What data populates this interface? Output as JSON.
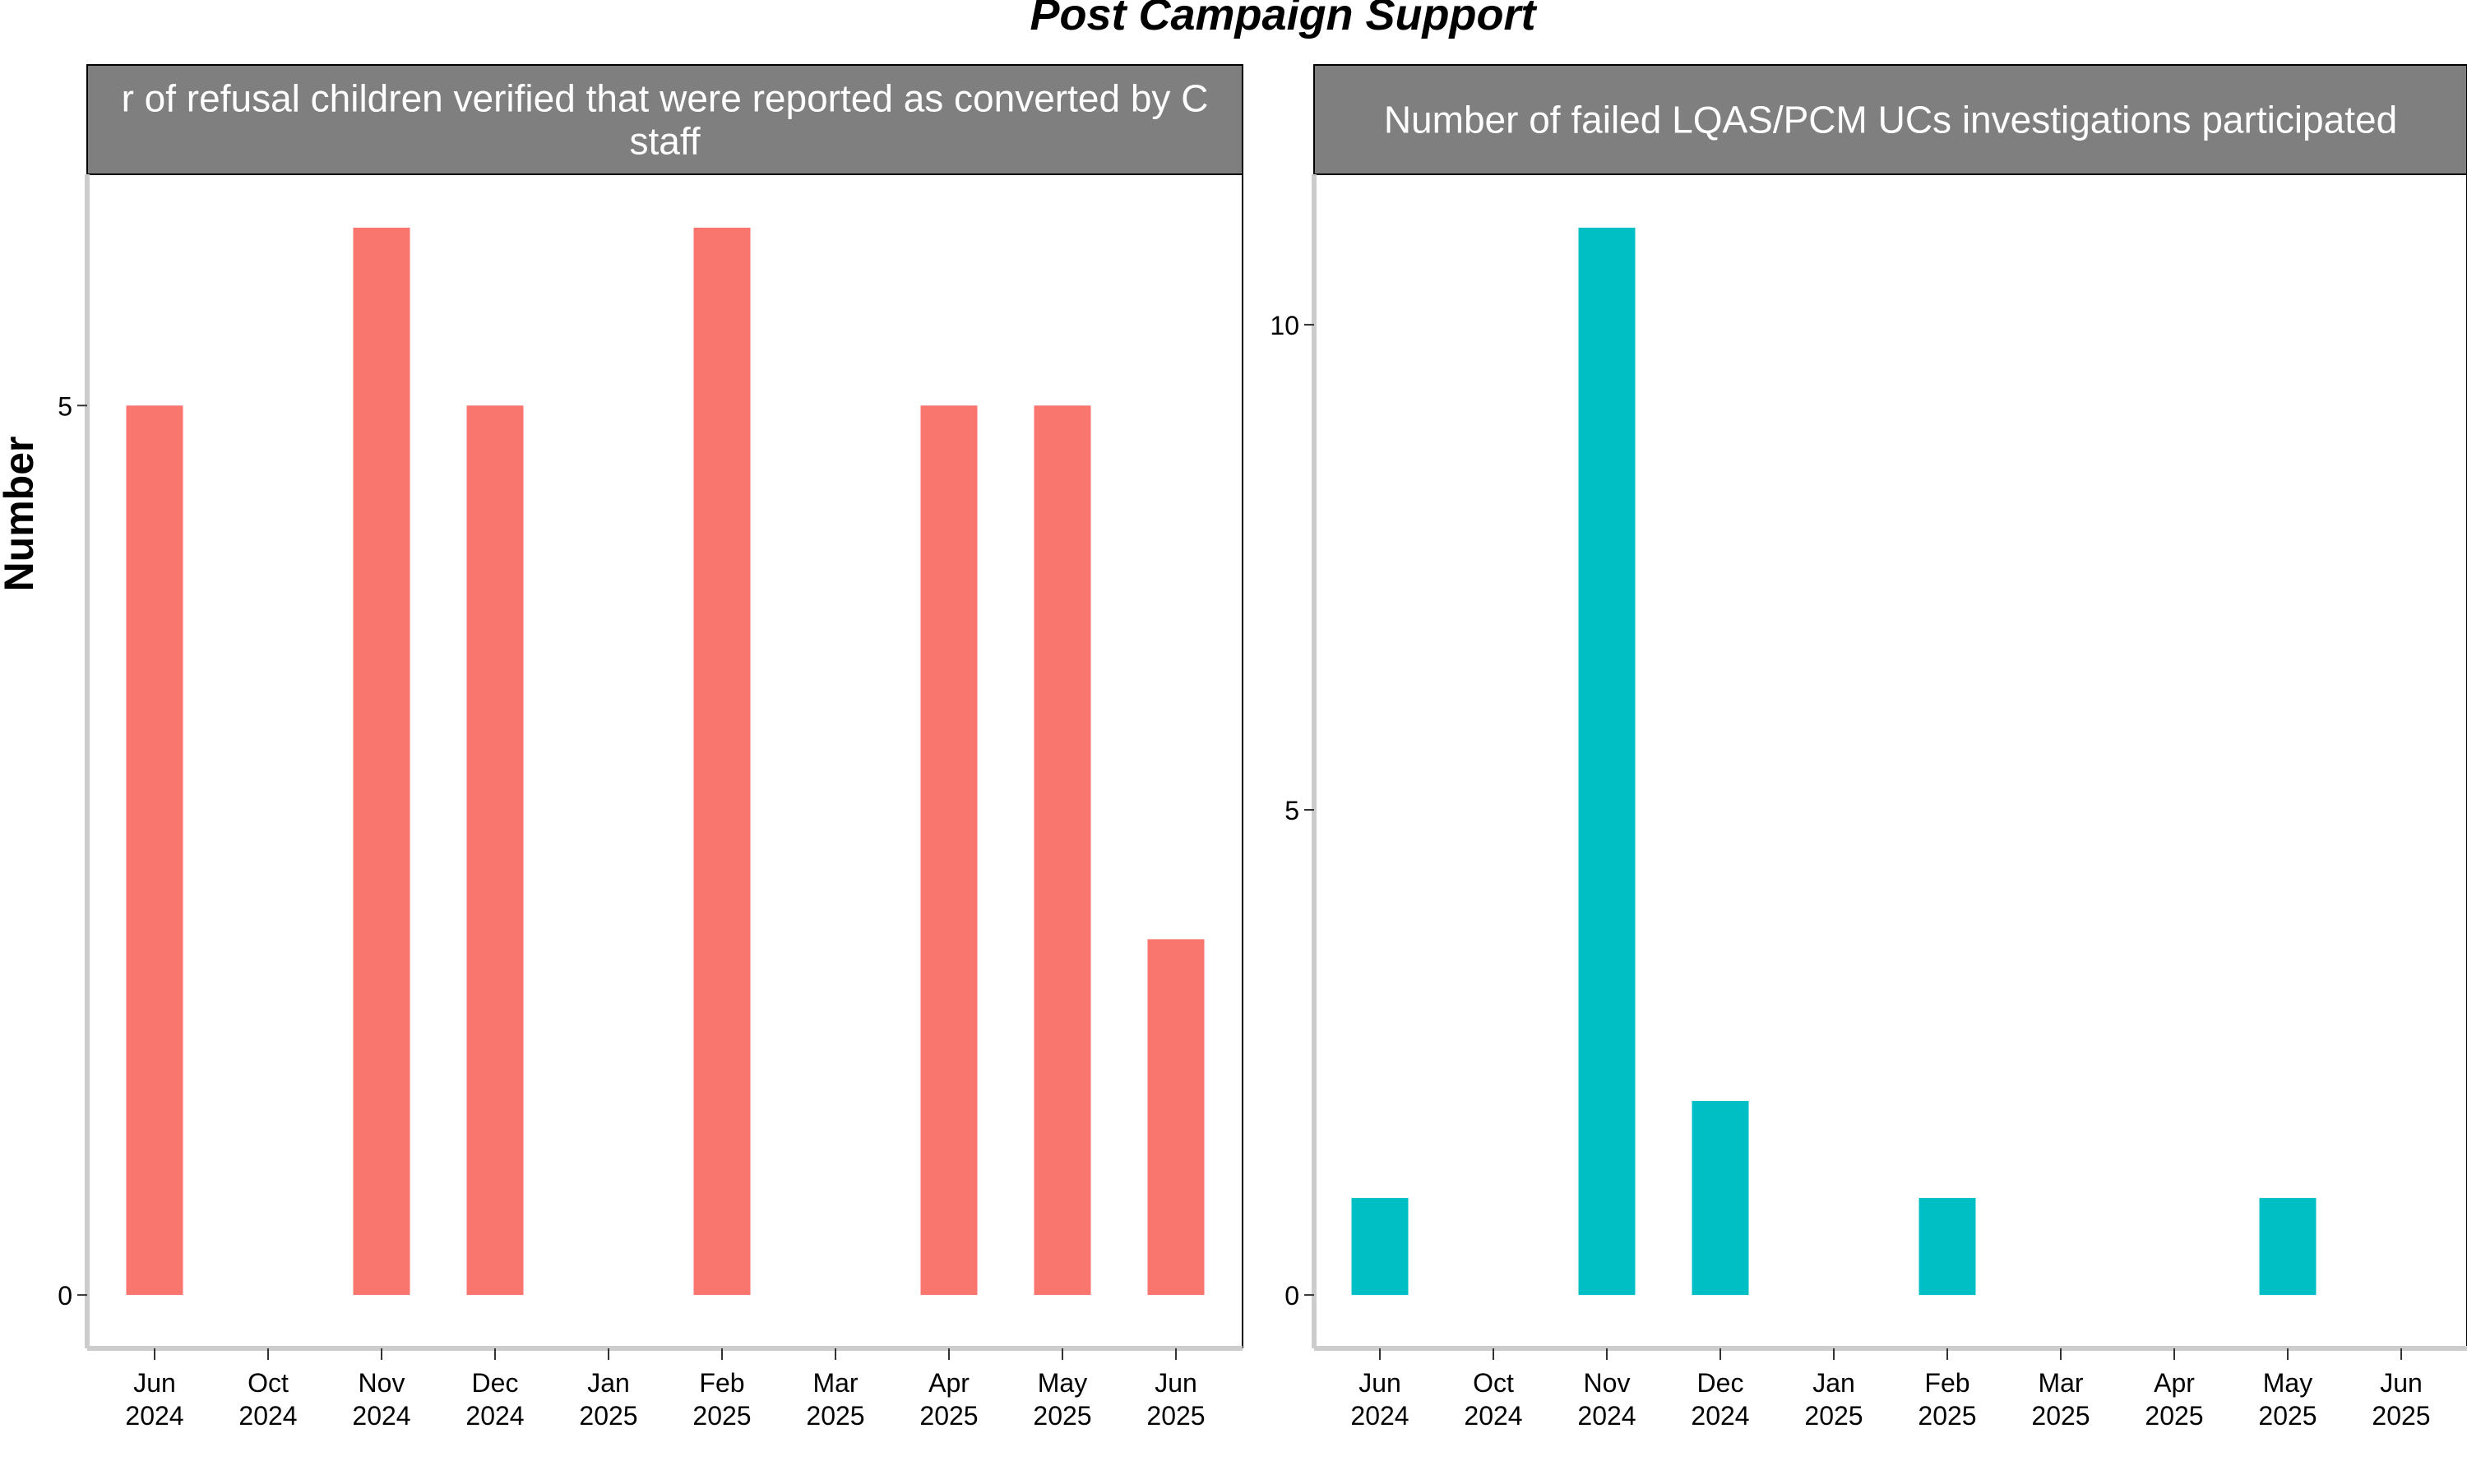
{
  "figure": {
    "title": "Post Campaign Support",
    "ylabel": "Number"
  },
  "chart_data": [
    {
      "type": "bar",
      "panel_title": "Number of refusal children verified that were reported as converted by CSO staff",
      "panel_title_display": [
        "r of refusal children verified that were reported as converted by C",
        "staff"
      ],
      "color": "#F8766D",
      "categories": [
        "Jun\n2024",
        "Oct\n2024",
        "Nov\n2024",
        "Dec\n2024",
        "Jan\n2025",
        "Feb\n2025",
        "Mar\n2025",
        "Apr\n2025",
        "May\n2025",
        "Jun\n2025"
      ],
      "values": [
        5,
        null,
        6,
        5,
        null,
        6,
        null,
        5,
        5,
        2
      ],
      "ylim": [
        -0.3,
        6.3
      ],
      "yticks": [
        0,
        5
      ],
      "xlabel": "",
      "ylabel": "Number"
    },
    {
      "type": "bar",
      "panel_title": "Number of failed LQAS/PCM UCs investigations participated",
      "panel_title_display": [
        "Number of failed LQAS/PCM UCs investigations participated"
      ],
      "color": "#00BFC4",
      "categories": [
        "Jun\n2024",
        "Oct\n2024",
        "Nov\n2024",
        "Dec\n2024",
        "Jan\n2025",
        "Feb\n2025",
        "Mar\n2025",
        "Apr\n2025",
        "May\n2025",
        "Jun\n2025"
      ],
      "values": [
        1,
        null,
        11,
        2,
        null,
        1,
        null,
        null,
        1,
        null
      ],
      "ylim": [
        -0.55,
        11.55
      ],
      "yticks": [
        0,
        5,
        10
      ],
      "xlabel": "",
      "ylabel": ""
    }
  ]
}
